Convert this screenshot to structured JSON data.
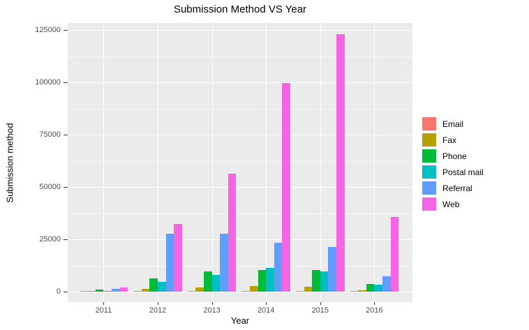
{
  "title": "Submission Method VS Year",
  "colors": {
    "panel_background": "#EBEBEB",
    "grid_major": "#FFFFFF",
    "tick_label": "#4D4D4D",
    "axis_text": "#000000"
  },
  "chart_data": {
    "type": "bar",
    "title": "Submission Method VS Year",
    "xlabel": "Year",
    "ylabel": "Submission method",
    "categories": [
      "2011",
      "2012",
      "2013",
      "2014",
      "2015",
      "2016"
    ],
    "series": [
      {
        "name": "Email",
        "color": "#F8766D",
        "values": [
          300,
          400,
          400,
          500,
          400,
          200
        ]
      },
      {
        "name": "Fax",
        "color": "#B79F00",
        "values": [
          300,
          1400,
          2000,
          2600,
          2500,
          800
        ]
      },
      {
        "name": "Phone",
        "color": "#00BA38",
        "values": [
          900,
          6500,
          9700,
          10300,
          10200,
          3600
        ]
      },
      {
        "name": "Postal mail",
        "color": "#00BFC4",
        "values": [
          400,
          4800,
          8000,
          11300,
          9700,
          3300
        ]
      },
      {
        "name": "Referral",
        "color": "#619CFF",
        "values": [
          1300,
          27600,
          27600,
          23500,
          21500,
          7300
        ]
      },
      {
        "name": "Web",
        "color": "#F564E3",
        "values": [
          2000,
          32300,
          56500,
          99700,
          123000,
          35800
        ]
      }
    ],
    "ylim": [
      0,
      125000
    ],
    "yticks": [
      0,
      25000,
      50000,
      75000,
      100000,
      125000
    ],
    "ytick_labels": [
      "0",
      "25000",
      "50000",
      "75000",
      "100000",
      "125000"
    ],
    "minor_yticks": [
      12500,
      37500,
      62500,
      87500,
      112500
    ],
    "grid": true,
    "legend_position": "right",
    "legend_labels": [
      "Email",
      "Fax",
      "Phone",
      "Postal mail",
      "Referral",
      "Web"
    ]
  }
}
